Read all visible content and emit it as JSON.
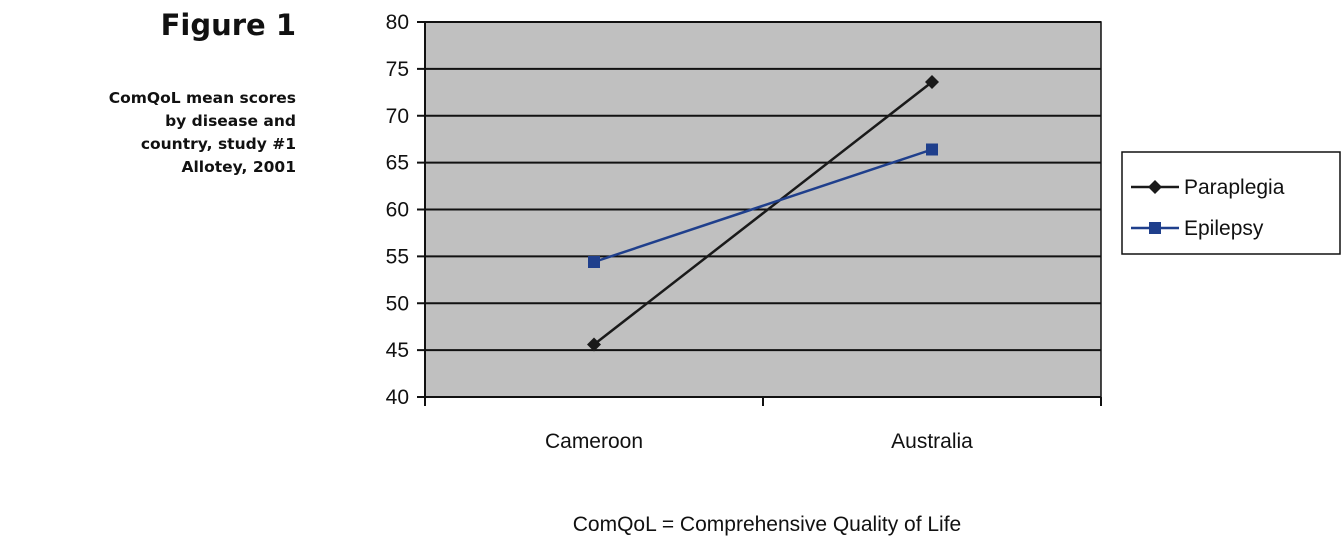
{
  "figure": {
    "title": "Figure 1",
    "caption_lines": [
      "ComQoL mean scores",
      "by disease and",
      "country, study #1",
      "Allotey, 2001"
    ]
  },
  "footnote": "ComQoL = Comprehensive Quality of Life",
  "chart_data": {
    "type": "line",
    "title": "",
    "xlabel": "",
    "ylabel": "",
    "categories": [
      "Cameroon",
      "Australia"
    ],
    "ylim": [
      40,
      80
    ],
    "y_ticks": [
      40,
      45,
      50,
      55,
      60,
      65,
      70,
      75,
      80
    ],
    "grid": true,
    "legend_position": "right",
    "plot_background": "#c0c0c0",
    "series": [
      {
        "name": "Paraplegia",
        "values": [
          45.6,
          73.6
        ],
        "color": "#1a1a1a",
        "marker": "diamond"
      },
      {
        "name": "Epilepsy",
        "values": [
          54.4,
          66.4
        ],
        "color": "#1f3f8c",
        "marker": "square"
      }
    ]
  }
}
